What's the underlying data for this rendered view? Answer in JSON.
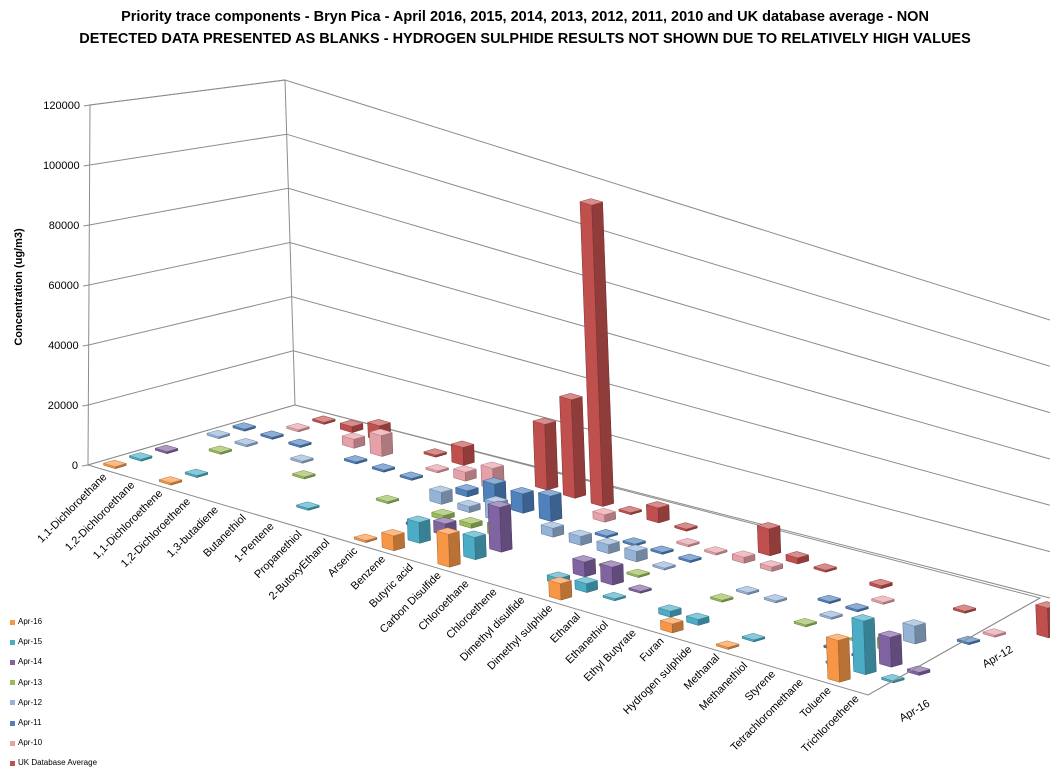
{
  "chart_data": {
    "type": "bar",
    "title": "Priority trace components - Bryn Pica - April 2016, 2015, 2014, 2013, 2012, 2011, 2010 and UK database average - NON DETECTED DATA PRESENTED AS BLANKS - HYDROGEN SULPHIDE RESULTS NOT SHOWN DUE TO RELATIVELY HIGH VALUES",
    "title_lines": [
      "Priority trace components - Bryn Pica - April 2016, 2015, 2014, 2013,  2012, 2011, 2010 and UK database average - NON",
      "DETECTED DATA PRESENTED AS BLANKS - HYDROGEN SULPHIDE RESULTS NOT SHOWN DUE TO RELATIVELY HIGH VALUES"
    ],
    "ylabel": "Concentration (ug/m3)",
    "ylim": [
      0,
      120000
    ],
    "yticks": [
      0,
      20000,
      40000,
      60000,
      80000,
      100000,
      120000
    ],
    "ytick_labels": [
      "0",
      "20000",
      "40000",
      "60000",
      "80000",
      "100000",
      "120000"
    ],
    "depth_axis_labels": [
      "Apr-16",
      "Apr-12"
    ],
    "legend_position": "bottom-left",
    "categories": [
      "1,1-Dichloroethane",
      "1,2-Dichloroethane",
      "1,1-Dichloroethene",
      "1,2-Dichloroethene",
      "1,3-butadiene",
      "Butanethiol",
      "1-Pentene",
      "Propanethiol",
      "2-ButoxyEthanol",
      "Arsenic",
      "Benzene",
      "Butyric acid",
      "Carbon Disulfide",
      "Chloroethane",
      "Chloroethene",
      "Dimethyl disulfide",
      "Dimethyl sulphide",
      "Ethanal",
      "Ethanethiol",
      "Ethyl Butyrate",
      "Furan",
      "Hydrogen sulphide",
      "Methanal",
      "Methanethiol",
      "Styrene",
      "Tetrachloromethane",
      "Toluene",
      "Trichloroethene"
    ],
    "series": [
      {
        "name": "Apr-16",
        "color": "#f79646",
        "values": [
          100,
          0,
          100,
          0,
          0,
          0,
          0,
          0,
          0,
          100,
          5000,
          0,
          11000,
          0,
          0,
          0,
          5500,
          0,
          0,
          0,
          3000,
          0,
          200,
          0,
          0,
          0,
          14000,
          0
        ]
      },
      {
        "name": "Apr-15",
        "color": "#4bacc6",
        "values": [
          100,
          0,
          100,
          0,
          0,
          0,
          200,
          0,
          0,
          0,
          7000,
          0,
          7500,
          0,
          0,
          2000,
          3000,
          100,
          0,
          2000,
          2000,
          0,
          400,
          0,
          0,
          400,
          18000,
          200
        ]
      },
      {
        "name": "Apr-14",
        "color": "#8064a2",
        "values": [
          100,
          0,
          0,
          0,
          0,
          0,
          0,
          0,
          0,
          200,
          4000,
          0,
          15000,
          0,
          0,
          5000,
          6000,
          200,
          0,
          0,
          0,
          0,
          0,
          0,
          200,
          400,
          10000,
          1000
        ]
      },
      {
        "name": "Apr-13",
        "color": "#9bbb59",
        "values": [
          0,
          100,
          0,
          0,
          200,
          0,
          0,
          100,
          0,
          1500,
          1500,
          3500,
          0,
          0,
          0,
          200,
          300,
          0,
          0,
          400,
          0,
          0,
          300,
          0,
          300,
          3500,
          0,
          0
        ]
      },
      {
        "name": "Apr-12",
        "color": "#95b3d7",
        "values": [
          100,
          100,
          0,
          100,
          0,
          0,
          0,
          0,
          4000,
          2000,
          6000,
          0,
          3000,
          3000,
          3000,
          3500,
          200,
          0,
          0,
          300,
          300,
          0,
          400,
          0,
          0,
          6000,
          0,
          0
        ]
      },
      {
        "name": "Apr-11",
        "color": "#4f81bd",
        "values": [
          100,
          100,
          100,
          0,
          200,
          100,
          100,
          0,
          2000,
          7000,
          6500,
          8500,
          0,
          500,
          300,
          300,
          100,
          0,
          0,
          0,
          0,
          300,
          400,
          0,
          0,
          0,
          200,
          0
        ]
      },
      {
        "name": "Apr-10",
        "color": "#e6a0a8",
        "values": [
          0,
          300,
          0,
          3000,
          7000,
          0,
          100,
          3000,
          7000,
          0,
          0,
          0,
          2500,
          0,
          0,
          100,
          200,
          2000,
          1500,
          0,
          0,
          0,
          100,
          0,
          0,
          0,
          300,
          0
        ]
      },
      {
        "name": "UK Database Average",
        "color": "#c0504d",
        "values": [
          0,
          200,
          2000,
          5000,
          0,
          500,
          6000,
          0,
          0,
          22000,
          33000,
          101000,
          400,
          5000,
          100,
          0,
          0,
          9000,
          2000,
          100,
          0,
          1000,
          0,
          0,
          200,
          0,
          0,
          10000
        ]
      }
    ]
  }
}
